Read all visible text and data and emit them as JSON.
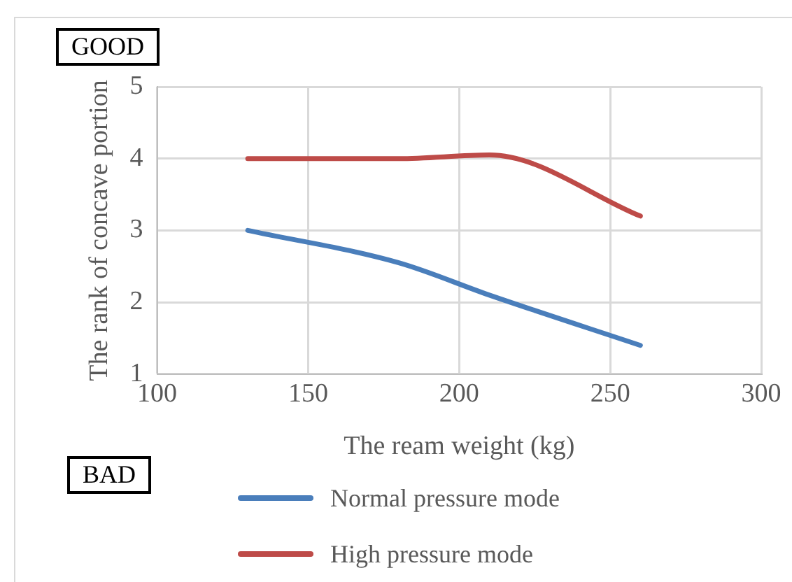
{
  "chart_data": {
    "type": "line",
    "xlabel": "The ream weight (kg)",
    "ylabel": "The rank of concave portion",
    "x": [
      130,
      180,
      210,
      260
    ],
    "series": [
      {
        "name": "Normal pressure mode",
        "color": "#4a7ebb",
        "values": [
          3,
          2.55,
          2.1,
          1.4
        ]
      },
      {
        "name": "High pressure mode",
        "color": "#be4b48",
        "values": [
          4,
          4,
          4.05,
          3.2
        ]
      }
    ],
    "xlim": [
      100,
      300
    ],
    "xticks": [
      100,
      150,
      200,
      250,
      300
    ],
    "ylim": [
      1,
      5
    ],
    "yticks": [
      1,
      2,
      3,
      4,
      5
    ],
    "grid": true,
    "legend": "bottom",
    "marker": "none",
    "line_style": "solid",
    "annotations": [
      "GOOD",
      "BAD"
    ]
  }
}
